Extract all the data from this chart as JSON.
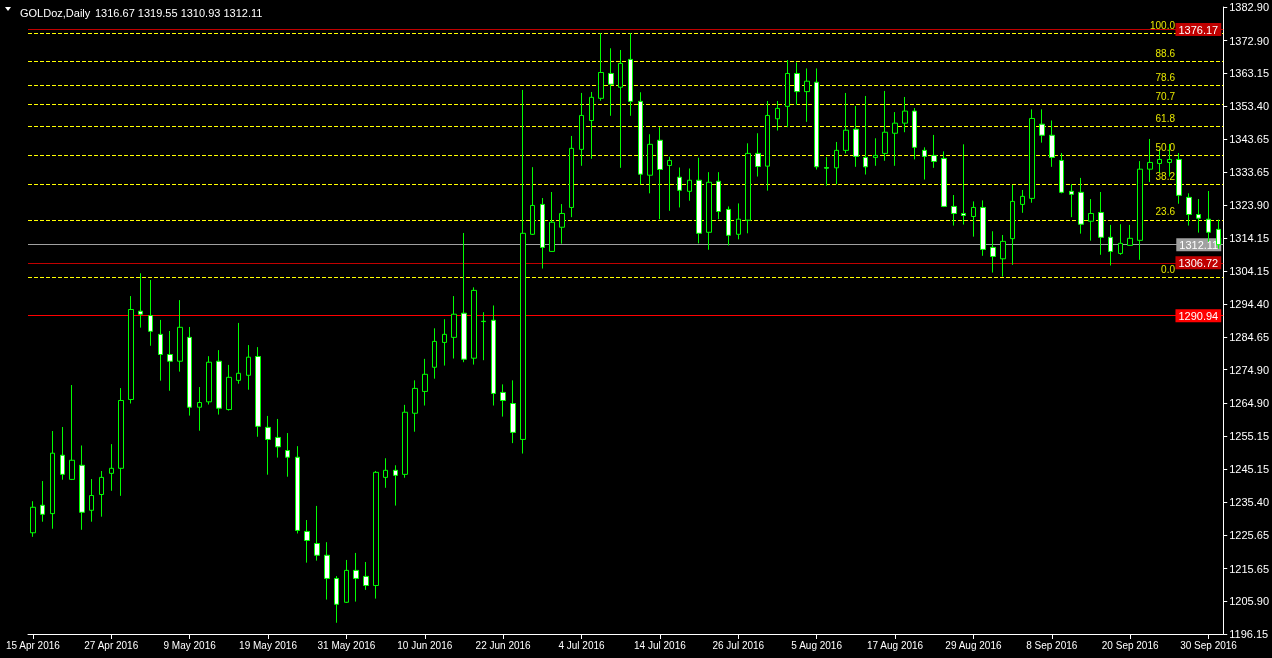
{
  "chart_data": {
    "type": "candlestick",
    "title": "GOLDoz,Daily",
    "subtitle": "1316.67 1319.55 1310.93 1312.11",
    "categories": [
      "15 Apr 2016",
      null,
      null,
      null,
      null,
      null,
      null,
      null,
      "27 Apr 2016",
      null,
      null,
      null,
      null,
      null,
      null,
      null,
      "9 May 2016",
      null,
      null,
      null,
      null,
      null,
      null,
      null,
      "19 May 2016",
      null,
      null,
      null,
      null,
      null,
      null,
      null,
      "31 May 2016",
      null,
      null,
      null,
      null,
      null,
      null,
      null,
      "10 Jun 2016",
      null,
      null,
      null,
      null,
      null,
      null,
      null,
      "22 Jun 2016",
      null,
      null,
      null,
      null,
      null,
      null,
      null,
      "4 Jul 2016",
      null,
      null,
      null,
      null,
      null,
      null,
      null,
      "14 Jul 2016",
      null,
      null,
      null,
      null,
      null,
      null,
      null,
      "26 Jul 2016",
      null,
      null,
      null,
      null,
      null,
      null,
      null,
      "5 Aug 2016",
      null,
      null,
      null,
      null,
      null,
      null,
      null,
      "17 Aug 2016",
      null,
      null,
      null,
      null,
      null,
      null,
      null,
      "29 Aug 2016",
      null,
      null,
      null,
      null,
      null,
      null,
      null,
      "8 Sep 2016",
      null,
      null,
      null,
      null,
      null,
      null,
      null,
      "20 Sep 2016",
      null,
      null,
      null,
      null,
      null,
      null,
      null,
      "30 Sep 2016",
      null
    ],
    "series": [
      {
        "color": "#00ff00",
        "ohlc": [
          [
            1226.3,
            1235.7,
            1225.1,
            1233.9
          ],
          [
            1234.5,
            1241.7,
            1229.6,
            1231.8
          ],
          [
            1232.0,
            1256.6,
            1227.5,
            1250.0
          ],
          [
            1249.4,
            1257.8,
            1242.1,
            1243.7
          ],
          [
            1242.2,
            1270.3,
            1242.0,
            1247.9
          ],
          [
            1246.4,
            1252.3,
            1227.2,
            1232.4
          ],
          [
            1233.0,
            1242.3,
            1229.6,
            1237.4
          ],
          [
            1237.7,
            1244.7,
            1231.1,
            1242.8
          ],
          [
            1244.0,
            1252.7,
            1238.8,
            1245.5
          ],
          [
            1245.5,
            1269.4,
            1237.3,
            1265.7
          ],
          [
            1266.0,
            1296.8,
            1264.8,
            1292.8
          ],
          [
            1292.3,
            1303.6,
            1287.4,
            1291.4
          ],
          [
            1291.0,
            1301.6,
            1282.0,
            1286.3
          ],
          [
            1285.4,
            1289.7,
            1271.6,
            1279.4
          ],
          [
            1279.4,
            1286.4,
            1268.6,
            1277.4
          ],
          [
            1277.4,
            1295.6,
            1274.3,
            1287.5
          ],
          [
            1284.5,
            1287.6,
            1261.2,
            1263.7
          ],
          [
            1263.7,
            1269.7,
            1256.7,
            1265.1
          ],
          [
            1265.3,
            1278.9,
            1264.5,
            1277.1
          ],
          [
            1277.4,
            1280.7,
            1261.5,
            1263.4
          ],
          [
            1263.0,
            1276.3,
            1262.7,
            1272.6
          ],
          [
            1271.7,
            1288.8,
            1270.7,
            1273.8
          ],
          [
            1273.2,
            1282.2,
            1268.9,
            1278.6
          ],
          [
            1278.8,
            1281.6,
            1254.9,
            1258.0
          ],
          [
            1257.7,
            1261.1,
            1243.6,
            1254.1
          ],
          [
            1254.7,
            1260.2,
            1248.7,
            1251.9
          ],
          [
            1250.8,
            1256.0,
            1243.0,
            1248.8
          ],
          [
            1248.8,
            1252.1,
            1226.1,
            1227.0
          ],
          [
            1226.7,
            1230.1,
            1217.4,
            1224.0
          ],
          [
            1223.1,
            1234.3,
            1218.0,
            1219.6
          ],
          [
            1219.6,
            1223.5,
            1206.4,
            1212.7
          ],
          [
            1212.7,
            1213.4,
            1199.5,
            1205.0
          ],
          [
            1205.6,
            1218.2,
            1205.4,
            1215.1
          ],
          [
            1215.1,
            1220.3,
            1205.8,
            1212.7
          ],
          [
            1213.3,
            1217.6,
            1209.3,
            1210.6
          ],
          [
            1210.6,
            1244.7,
            1206.7,
            1244.3
          ],
          [
            1242.8,
            1248.5,
            1239.7,
            1244.9
          ],
          [
            1244.9,
            1246.4,
            1234.4,
            1243.4
          ],
          [
            1243.7,
            1264.4,
            1242.7,
            1262.2
          ],
          [
            1261.9,
            1271.7,
            1256.4,
            1269.3
          ],
          [
            1268.4,
            1278.1,
            1264.2,
            1273.5
          ],
          [
            1275.6,
            1287.2,
            1272.2,
            1283.3
          ],
          [
            1283.0,
            1289.9,
            1276.1,
            1285.4
          ],
          [
            1284.5,
            1296.8,
            1278.2,
            1291.4
          ],
          [
            1291.7,
            1315.6,
            1277.1,
            1278.0
          ],
          [
            1278.3,
            1299.4,
            1276.4,
            1298.5
          ],
          [
            1289.3,
            1292.0,
            1277.7,
            1289.2
          ],
          [
            1289.6,
            1294.0,
            1264.2,
            1267.8
          ],
          [
            1268.1,
            1270.5,
            1260.9,
            1265.7
          ],
          [
            1264.8,
            1271.7,
            1253.0,
            1256.2
          ],
          [
            1254.1,
            1358.2,
            1249.9,
            1315.5
          ],
          [
            1315.2,
            1335.2,
            1315.0,
            1323.8
          ],
          [
            1324.1,
            1326.0,
            1305.0,
            1311.3
          ],
          [
            1310.1,
            1327.8,
            1310.0,
            1318.8
          ],
          [
            1317.3,
            1324.2,
            1312.4,
            1321.4
          ],
          [
            1323.2,
            1344.5,
            1320.3,
            1340.8
          ],
          [
            1340.5,
            1357.3,
            1335.6,
            1350.6
          ],
          [
            1349.1,
            1357.6,
            1337.7,
            1356.0
          ],
          [
            1355.7,
            1375.1,
            1355.0,
            1363.4
          ],
          [
            1363.1,
            1370.6,
            1350.5,
            1359.9
          ],
          [
            1359.0,
            1370.1,
            1335.0,
            1366.1
          ],
          [
            1367.3,
            1375.1,
            1350.5,
            1354.8
          ],
          [
            1354.8,
            1357.5,
            1330.1,
            1333.1
          ],
          [
            1332.8,
            1345.0,
            1327.4,
            1342.0
          ],
          [
            1343.2,
            1347.1,
            1319.7,
            1334.5
          ],
          [
            1335.7,
            1338.3,
            1322.2,
            1337.2
          ],
          [
            1332.2,
            1335.1,
            1323.2,
            1328.3
          ],
          [
            1328.0,
            1334.8,
            1325.2,
            1331.3
          ],
          [
            1331.3,
            1338.0,
            1312.5,
            1315.5
          ],
          [
            1315.8,
            1333.7,
            1310.6,
            1330.7
          ],
          [
            1331.0,
            1333.7,
            1319.7,
            1322.0
          ],
          [
            1322.6,
            1323.5,
            1311.9,
            1314.9
          ],
          [
            1315.2,
            1324.4,
            1313.7,
            1319.7
          ],
          [
            1319.4,
            1342.3,
            1315.5,
            1339.3
          ],
          [
            1339.3,
            1345.3,
            1332.4,
            1335.4
          ],
          [
            1335.5,
            1354.9,
            1328.2,
            1350.6
          ],
          [
            1349.6,
            1354.9,
            1346.1,
            1352.7
          ],
          [
            1353.3,
            1367.1,
            1347.1,
            1363.1
          ],
          [
            1363.1,
            1366.4,
            1353.7,
            1357.7
          ],
          [
            1357.7,
            1364.6,
            1348.7,
            1360.8
          ],
          [
            1360.5,
            1364.6,
            1334.5,
            1335.3
          ],
          [
            1335.1,
            1338.2,
            1329.7,
            1334.9
          ],
          [
            1335.0,
            1342.7,
            1330.1,
            1340.2
          ],
          [
            1340.2,
            1357.3,
            1339.3,
            1346.2
          ],
          [
            1346.5,
            1353.4,
            1335.3,
            1338.4
          ],
          [
            1338.1,
            1356.4,
            1333.0,
            1335.3
          ],
          [
            1338.1,
            1343.8,
            1335.6,
            1338.7
          ],
          [
            1339.3,
            1357.9,
            1337.1,
            1345.6
          ],
          [
            1345.3,
            1351.6,
            1335.6,
            1348.3
          ],
          [
            1348.3,
            1356.1,
            1345.6,
            1351.9
          ],
          [
            1351.9,
            1352.8,
            1337.5,
            1341.1
          ],
          [
            1340.2,
            1341.1,
            1331.5,
            1338.4
          ],
          [
            1338.7,
            1344.8,
            1335.0,
            1336.9
          ],
          [
            1337.8,
            1339.9,
            1323.3,
            1323.5
          ],
          [
            1323.5,
            1326.9,
            1317.8,
            1321.4
          ],
          [
            1321.4,
            1342.0,
            1318.1,
            1320.8
          ],
          [
            1320.5,
            1325.0,
            1314.5,
            1323.2
          ],
          [
            1323.2,
            1325.3,
            1308.8,
            1310.7
          ],
          [
            1311.3,
            1316.1,
            1303.8,
            1308.6
          ],
          [
            1307.9,
            1315.0,
            1302.6,
            1313.1
          ],
          [
            1313.9,
            1329.9,
            1306.1,
            1325.0
          ],
          [
            1324.1,
            1328.4,
            1321.6,
            1326.5
          ],
          [
            1325.9,
            1352.4,
            1324.6,
            1349.7
          ],
          [
            1348.0,
            1352.4,
            1342.5,
            1344.7
          ],
          [
            1344.7,
            1349.1,
            1335.3,
            1338.1
          ],
          [
            1337.2,
            1339.4,
            1327.4,
            1327.7
          ],
          [
            1328.0,
            1330.1,
            1320.3,
            1327.1
          ],
          [
            1327.7,
            1332.0,
            1315.4,
            1318.2
          ],
          [
            1319.1,
            1325.7,
            1313.3,
            1321.4
          ],
          [
            1321.7,
            1327.8,
            1309.1,
            1314.3
          ],
          [
            1314.3,
            1318.0,
            1305.9,
            1310.1
          ],
          [
            1309.5,
            1318.2,
            1309.1,
            1312.5
          ],
          [
            1311.9,
            1318.0,
            1311.8,
            1314.0
          ],
          [
            1313.4,
            1337.0,
            1307.6,
            1334.6
          ],
          [
            1334.6,
            1343.6,
            1330.8,
            1336.6
          ],
          [
            1336.3,
            1340.6,
            1333.6,
            1337.5
          ],
          [
            1336.6,
            1342.1,
            1332.4,
            1337.5
          ],
          [
            1337.5,
            1339.4,
            1324.3,
            1326.8
          ],
          [
            1326.2,
            1327.4,
            1317.8,
            1321.1
          ],
          [
            1321.1,
            1325.7,
            1315.7,
            1320.0
          ],
          [
            1319.7,
            1328.1,
            1313.0,
            1315.8
          ],
          [
            1316.67,
            1319.55,
            1310.93,
            1312.11
          ]
        ]
      }
    ],
    "ylim": [
      1196.15,
      1382.9
    ],
    "yticks": [
      {
        "value": 1382.9,
        "label": "1382.90"
      },
      {
        "value": 1372.9,
        "label": "1372.90"
      },
      {
        "value": 1363.15,
        "label": "1363.15"
      },
      {
        "value": 1353.4,
        "label": "1353.40"
      },
      {
        "value": 1343.65,
        "label": "1343.65"
      },
      {
        "value": 1333.65,
        "label": "1333.65"
      },
      {
        "value": 1323.9,
        "label": "1323.90"
      },
      {
        "value": 1314.15,
        "label": "1314.15"
      },
      {
        "value": 1304.15,
        "label": "1304.15"
      },
      {
        "value": 1294.4,
        "label": "1294.40"
      },
      {
        "value": 1284.65,
        "label": "1284.65"
      },
      {
        "value": 1274.9,
        "label": "1274.90"
      },
      {
        "value": 1264.9,
        "label": "1264.90"
      },
      {
        "value": 1255.15,
        "label": "1255.15"
      },
      {
        "value": 1245.15,
        "label": "1245.15"
      },
      {
        "value": 1235.4,
        "label": "1235.40"
      },
      {
        "value": 1225.65,
        "label": "1225.65"
      },
      {
        "value": 1215.65,
        "label": "1215.65"
      },
      {
        "value": 1205.9,
        "label": "1205.90"
      },
      {
        "value": 1196.15,
        "label": "1196.15"
      }
    ],
    "ref_lines": [
      {
        "axis": "y",
        "value": 1376.17,
        "label": "1376.17",
        "color": "#c00000",
        "line_style": "solid"
      },
      {
        "axis": "y",
        "value": 1312.11,
        "label": "1312.11",
        "color": "#a0a0a0",
        "line_style": "solid"
      },
      {
        "axis": "y",
        "value": 1306.72,
        "label": "1306.72",
        "color": "#c00000",
        "line_style": "solid"
      },
      {
        "axis": "y",
        "value": 1290.94,
        "label": "1290.94",
        "color": "#ff0000",
        "line_style": "solid"
      },
      {
        "axis": "y",
        "value": 1375.1,
        "color": "#ffff00",
        "line_style": "dashed"
      },
      {
        "axis": "y",
        "value": 1366.8,
        "color": "#ffff00",
        "line_style": "dashed"
      },
      {
        "axis": "y",
        "value": 1359.5,
        "color": "#ffff00",
        "line_style": "dashed"
      },
      {
        "axis": "y",
        "value": 1353.8,
        "color": "#ffff00",
        "line_style": "dashed"
      },
      {
        "axis": "y",
        "value": 1347.3,
        "color": "#ffff00",
        "line_style": "dashed"
      },
      {
        "axis": "y",
        "value": 1338.7,
        "color": "#ffff00",
        "line_style": "dashed"
      },
      {
        "axis": "y",
        "value": 1330.1,
        "color": "#ffff00",
        "line_style": "dashed"
      },
      {
        "axis": "y",
        "value": 1319.5,
        "color": "#ffff00",
        "line_style": "dashed"
      },
      {
        "axis": "y",
        "value": 1302.4,
        "color": "#ffff00",
        "line_style": "dashed"
      }
    ],
    "annotations": [
      {
        "text": "100.0",
        "y": 1375.1
      },
      {
        "text": "88.6",
        "y": 1366.8
      },
      {
        "text": "78.6",
        "y": 1359.5
      },
      {
        "text": "70.7",
        "y": 1353.8
      },
      {
        "text": "61.8",
        "y": 1347.3
      },
      {
        "text": "50.0",
        "y": 1338.7
      },
      {
        "text": "38.2",
        "y": 1330.1
      },
      {
        "text": "23.6",
        "y": 1319.5
      },
      {
        "text": "0.0",
        "y": 1302.4
      }
    ],
    "grid": false
  }
}
